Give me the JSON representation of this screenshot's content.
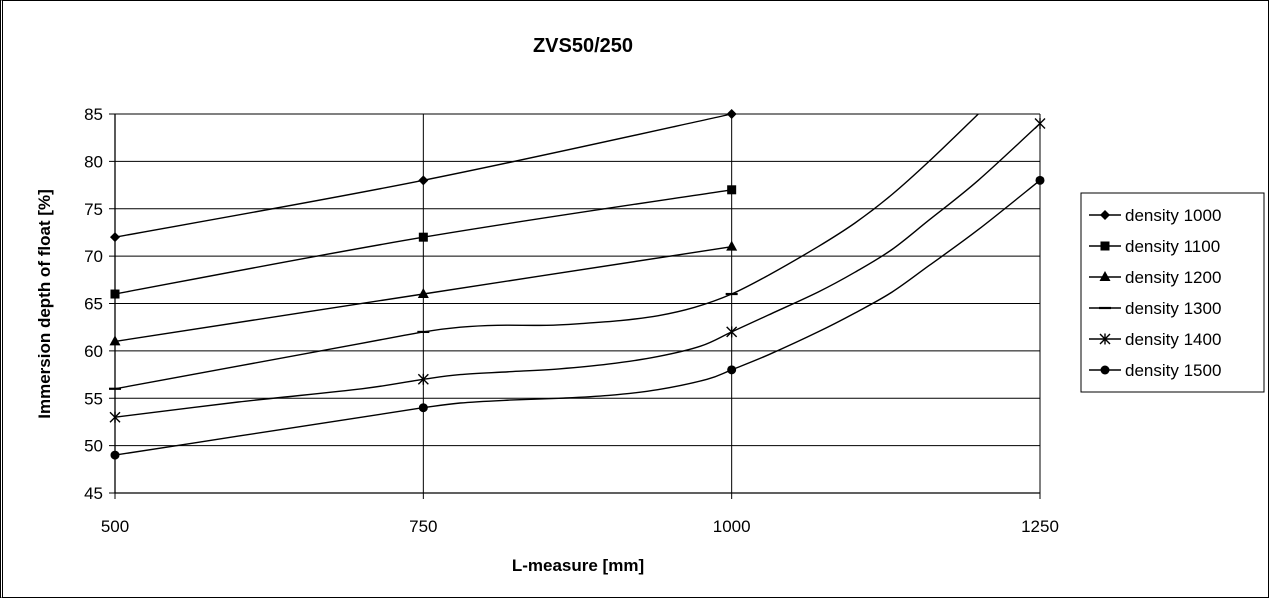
{
  "chart_data": {
    "type": "line",
    "title": "ZVS50/250",
    "xlabel": "L-measure [mm]",
    "ylabel": "Immersion depth of float [%]",
    "xlim": [
      500,
      1250
    ],
    "ylim": [
      45,
      85
    ],
    "x_ticks": [
      500,
      750,
      1000,
      1250
    ],
    "y_ticks": [
      45,
      50,
      55,
      60,
      65,
      70,
      75,
      80,
      85
    ],
    "grid": true,
    "legend_position": "right",
    "series": [
      {
        "name": "density 1000",
        "marker": "diamond",
        "markers": [
          [
            500,
            72
          ],
          [
            750,
            78
          ],
          [
            1000,
            85
          ]
        ],
        "curve": [
          [
            500,
            72
          ],
          [
            750,
            78
          ],
          [
            1000,
            85
          ]
        ]
      },
      {
        "name": "density 1100",
        "marker": "square",
        "markers": [
          [
            500,
            66
          ],
          [
            750,
            72
          ],
          [
            1000,
            77
          ]
        ],
        "curve": [
          [
            500,
            66
          ],
          [
            750,
            72
          ],
          [
            1000,
            77
          ]
        ]
      },
      {
        "name": "density 1200",
        "marker": "triangle",
        "markers": [
          [
            500,
            61
          ],
          [
            750,
            66
          ],
          [
            1000,
            71
          ]
        ],
        "curve": [
          [
            500,
            61
          ],
          [
            750,
            66
          ],
          [
            1000,
            71
          ]
        ]
      },
      {
        "name": "density 1300",
        "marker": "dash",
        "markers": [
          [
            500,
            56
          ],
          [
            750,
            62
          ],
          [
            1000,
            66
          ]
        ],
        "curve": [
          [
            500,
            56
          ],
          [
            700,
            60.8
          ],
          [
            750,
            62
          ],
          [
            780,
            62.5
          ],
          [
            810,
            62.7
          ],
          [
            850,
            62.7
          ],
          [
            880,
            62.9
          ],
          [
            910,
            63.2
          ],
          [
            940,
            63.7
          ],
          [
            970,
            64.6
          ],
          [
            1000,
            66
          ],
          [
            1030,
            68
          ],
          [
            1070,
            71
          ],
          [
            1100,
            73.5
          ],
          [
            1130,
            76.5
          ],
          [
            1160,
            80
          ],
          [
            1200,
            85
          ]
        ]
      },
      {
        "name": "density 1400",
        "marker": "star",
        "markers": [
          [
            500,
            53
          ],
          [
            750,
            57
          ],
          [
            1000,
            62
          ],
          [
            1250,
            84
          ]
        ],
        "curve": [
          [
            500,
            53
          ],
          [
            600,
            54.6
          ],
          [
            700,
            56
          ],
          [
            750,
            57
          ],
          [
            780,
            57.5
          ],
          [
            820,
            57.8
          ],
          [
            860,
            58.1
          ],
          [
            900,
            58.6
          ],
          [
            940,
            59.4
          ],
          [
            975,
            60.5
          ],
          [
            1000,
            62
          ],
          [
            1030,
            63.8
          ],
          [
            1070,
            66.2
          ],
          [
            1100,
            68.3
          ],
          [
            1130,
            70.7
          ],
          [
            1160,
            73.8
          ],
          [
            1200,
            78
          ],
          [
            1250,
            84
          ]
        ]
      },
      {
        "name": "density 1500",
        "marker": "circle",
        "markers": [
          [
            500,
            49
          ],
          [
            750,
            54
          ],
          [
            1000,
            58
          ],
          [
            1250,
            78
          ]
        ],
        "curve": [
          [
            500,
            49
          ],
          [
            600,
            51
          ],
          [
            700,
            53
          ],
          [
            750,
            54
          ],
          [
            780,
            54.5
          ],
          [
            820,
            54.8
          ],
          [
            860,
            55
          ],
          [
            900,
            55.3
          ],
          [
            940,
            55.9
          ],
          [
            980,
            57
          ],
          [
            1000,
            58
          ],
          [
            1030,
            59.6
          ],
          [
            1070,
            62
          ],
          [
            1100,
            64
          ],
          [
            1130,
            66.2
          ],
          [
            1160,
            69
          ],
          [
            1200,
            72.8
          ],
          [
            1250,
            78
          ]
        ]
      }
    ]
  }
}
